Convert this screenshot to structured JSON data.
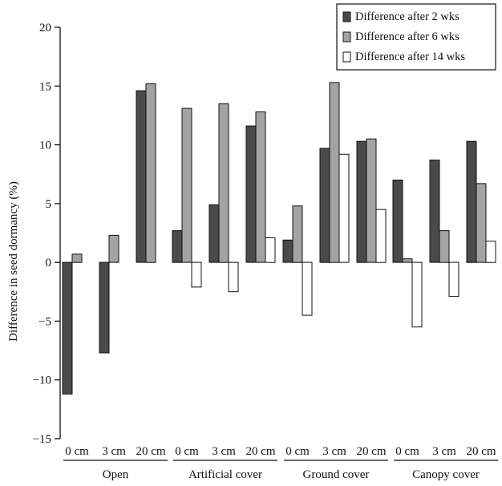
{
  "colors": {
    "series_2wk": "#4a4a4a",
    "series_6wk": "#a3a3a3",
    "series_14wk": "#ffffff",
    "axis": "#111111"
  },
  "chart_data": {
    "type": "bar",
    "title": "",
    "xlabel": "",
    "ylabel": "Difference in seed dormancy (%)",
    "ylim": [
      -15,
      20
    ],
    "yticks": [
      20,
      15,
      10,
      5,
      0,
      -5,
      -10,
      -15
    ],
    "ytick_labels": [
      "20",
      "15",
      "10",
      "5",
      "0",
      "−5",
      "−10",
      "−15"
    ],
    "legend_position": "top-right",
    "grid": false,
    "groups": [
      {
        "name": "Open",
        "categories": [
          "0 cm",
          "3 cm",
          "20 cm"
        ]
      },
      {
        "name": "Artificial cover",
        "categories": [
          "0 cm",
          "3 cm",
          "20 cm"
        ]
      },
      {
        "name": "Ground cover",
        "categories": [
          "0 cm",
          "3 cm",
          "20 cm"
        ]
      },
      {
        "name": "Canopy cover",
        "categories": [
          "0 cm",
          "3 cm",
          "20 cm"
        ]
      }
    ],
    "series": [
      {
        "name": "Difference after 2 wks",
        "color": "#4a4a4a",
        "values": [
          -11.2,
          -7.7,
          14.6,
          2.7,
          4.9,
          11.6,
          1.9,
          9.7,
          10.3,
          7.0,
          8.7,
          10.3
        ]
      },
      {
        "name": "Difference after 6 wks",
        "color": "#a3a3a3",
        "values": [
          0.7,
          2.3,
          15.2,
          13.1,
          13.5,
          12.8,
          4.8,
          15.3,
          10.5,
          0.3,
          2.7,
          6.7
        ]
      },
      {
        "name": "Difference after 14 wks",
        "color": "#ffffff",
        "values": [
          null,
          null,
          null,
          -2.1,
          -2.5,
          2.1,
          -4.5,
          9.2,
          4.5,
          -5.5,
          -2.9,
          1.8
        ]
      }
    ]
  }
}
